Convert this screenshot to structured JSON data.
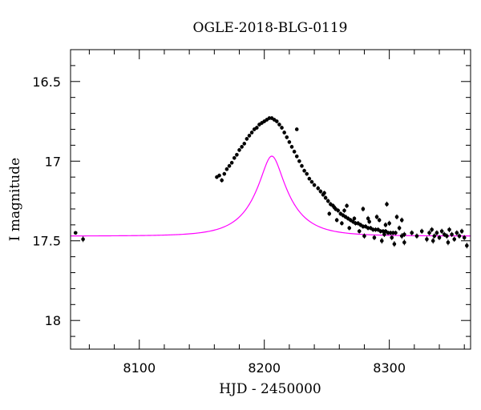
{
  "chart_data": {
    "type": "scatter",
    "title": "OGLE-2018-BLG-0119",
    "xlabel": "HJD - 2450000",
    "ylabel": "I magnitude",
    "xlim": [
      8045,
      8365
    ],
    "ylim": [
      18.18,
      16.3
    ],
    "y_inverted": true,
    "x_ticks": [
      8100,
      8200,
      8300
    ],
    "y_ticks": [
      16.5,
      17,
      17.5,
      18
    ],
    "x_tick_labels": [
      "8100",
      "8200",
      "8300"
    ],
    "y_tick_labels": [
      "16.5",
      "17",
      "17.5",
      "18"
    ],
    "grid": false,
    "colors": {
      "model": "#ff00ff",
      "points": "#000000",
      "frame": "#000000"
    },
    "model": {
      "label": "",
      "params": {
        "t0": 8206,
        "u0": 0.28,
        "tE": 28,
        "base": 17.47,
        "amp_scale": 0.355
      }
    },
    "series": [
      {
        "points": [
          [
            8049,
            17.45,
            0.01
          ],
          [
            8055,
            17.49,
            0.018
          ],
          [
            8162,
            17.1,
            0.012
          ],
          [
            8164,
            17.09,
            0.012
          ],
          [
            8166,
            17.12,
            0.014
          ],
          [
            8168,
            17.08,
            0.012
          ],
          [
            8170,
            17.05,
            0.012
          ],
          [
            8172,
            17.03,
            0.012
          ],
          [
            8174,
            17.01,
            0.012
          ],
          [
            8176,
            16.98,
            0.012
          ],
          [
            8178,
            16.96,
            0.012
          ],
          [
            8180,
            16.93,
            0.012
          ],
          [
            8182,
            16.91,
            0.012
          ],
          [
            8184,
            16.89,
            0.012
          ],
          [
            8186,
            16.86,
            0.012
          ],
          [
            8188,
            16.84,
            0.012
          ],
          [
            8190,
            16.82,
            0.012
          ],
          [
            8192,
            16.8,
            0.012
          ],
          [
            8194,
            16.79,
            0.012
          ],
          [
            8196,
            16.77,
            0.012
          ],
          [
            8198,
            16.76,
            0.012
          ],
          [
            8200,
            16.75,
            0.012
          ],
          [
            8202,
            16.74,
            0.012
          ],
          [
            8204,
            16.73,
            0.012
          ],
          [
            8206,
            16.73,
            0.012
          ],
          [
            8208,
            16.74,
            0.012
          ],
          [
            8210,
            16.75,
            0.012
          ],
          [
            8212,
            16.77,
            0.012
          ],
          [
            8214,
            16.79,
            0.012
          ],
          [
            8216,
            16.82,
            0.012
          ],
          [
            8218,
            16.85,
            0.012
          ],
          [
            8220,
            16.88,
            0.012
          ],
          [
            8222,
            16.91,
            0.012
          ],
          [
            8224,
            16.94,
            0.012
          ],
          [
            8226,
            16.97,
            0.012
          ],
          [
            8228,
            17.0,
            0.012
          ],
          [
            8230,
            17.03,
            0.012
          ],
          [
            8232,
            17.06,
            0.012
          ],
          [
            8234,
            17.08,
            0.012
          ],
          [
            8236,
            17.11,
            0.012
          ],
          [
            8238,
            17.13,
            0.012
          ],
          [
            8240,
            17.15,
            0.012
          ],
          [
            8226,
            16.8,
            0.01
          ],
          [
            8243,
            17.17,
            0.014
          ],
          [
            8245,
            17.19,
            0.014
          ],
          [
            8247,
            17.21,
            0.014
          ],
          [
            8249,
            17.23,
            0.014
          ],
          [
            8251,
            17.25,
            0.014
          ],
          [
            8253,
            17.27,
            0.014
          ],
          [
            8255,
            17.28,
            0.014
          ],
          [
            8257,
            17.3,
            0.014
          ],
          [
            8259,
            17.31,
            0.014
          ],
          [
            8261,
            17.33,
            0.014
          ],
          [
            8263,
            17.34,
            0.014
          ],
          [
            8265,
            17.35,
            0.014
          ],
          [
            8267,
            17.36,
            0.014
          ],
          [
            8269,
            17.37,
            0.014
          ],
          [
            8271,
            17.38,
            0.014
          ],
          [
            8273,
            17.39,
            0.014
          ],
          [
            8275,
            17.39,
            0.014
          ],
          [
            8277,
            17.4,
            0.014
          ],
          [
            8279,
            17.41,
            0.014
          ],
          [
            8281,
            17.41,
            0.014
          ],
          [
            8283,
            17.42,
            0.014
          ],
          [
            8285,
            17.42,
            0.014
          ],
          [
            8287,
            17.43,
            0.014
          ],
          [
            8289,
            17.43,
            0.014
          ],
          [
            8291,
            17.43,
            0.014
          ],
          [
            8293,
            17.44,
            0.014
          ],
          [
            8295,
            17.44,
            0.014
          ],
          [
            8297,
            17.44,
            0.014
          ],
          [
            8299,
            17.45,
            0.014
          ],
          [
            8301,
            17.45,
            0.014
          ],
          [
            8303,
            17.45,
            0.014
          ],
          [
            8305,
            17.45,
            0.014
          ],
          [
            8252,
            17.33,
            0.014
          ],
          [
            8258,
            17.37,
            0.014
          ],
          [
            8262,
            17.39,
            0.014
          ],
          [
            8268,
            17.42,
            0.014
          ],
          [
            8272,
            17.36,
            0.014
          ],
          [
            8276,
            17.44,
            0.014
          ],
          [
            8280,
            17.47,
            0.016
          ],
          [
            8284,
            17.38,
            0.014
          ],
          [
            8288,
            17.48,
            0.016
          ],
          [
            8292,
            17.37,
            0.014
          ],
          [
            8294,
            17.5,
            0.018
          ],
          [
            8296,
            17.46,
            0.016
          ],
          [
            8298,
            17.27,
            0.016
          ],
          [
            8300,
            17.39,
            0.016
          ],
          [
            8302,
            17.48,
            0.016
          ],
          [
            8304,
            17.52,
            0.018
          ],
          [
            8306,
            17.35,
            0.016
          ],
          [
            8308,
            17.42,
            0.016
          ],
          [
            8310,
            17.37,
            0.016
          ],
          [
            8312,
            17.46,
            0.016
          ],
          [
            8248,
            17.2,
            0.014
          ],
          [
            8256,
            17.29,
            0.014
          ],
          [
            8264,
            17.31,
            0.014
          ],
          [
            8266,
            17.28,
            0.014
          ],
          [
            8279,
            17.3,
            0.016
          ],
          [
            8283,
            17.36,
            0.016
          ],
          [
            8290,
            17.35,
            0.016
          ],
          [
            8297,
            17.4,
            0.016
          ],
          [
            8310,
            17.47,
            0.018
          ],
          [
            8312,
            17.51,
            0.018
          ],
          [
            8318,
            17.45,
            0.016
          ],
          [
            8322,
            17.47,
            0.016
          ],
          [
            8326,
            17.44,
            0.016
          ],
          [
            8330,
            17.49,
            0.018
          ],
          [
            8332,
            17.45,
            0.016
          ],
          [
            8334,
            17.43,
            0.016
          ],
          [
            8336,
            17.47,
            0.016
          ],
          [
            8338,
            17.45,
            0.016
          ],
          [
            8340,
            17.48,
            0.016
          ],
          [
            8342,
            17.44,
            0.016
          ],
          [
            8344,
            17.46,
            0.016
          ],
          [
            8346,
            17.47,
            0.016
          ],
          [
            8348,
            17.43,
            0.016
          ],
          [
            8350,
            17.46,
            0.016
          ],
          [
            8352,
            17.49,
            0.016
          ],
          [
            8354,
            17.45,
            0.016
          ],
          [
            8356,
            17.47,
            0.016
          ],
          [
            8358,
            17.44,
            0.016
          ],
          [
            8360,
            17.48,
            0.016
          ],
          [
            8362,
            17.53,
            0.018
          ],
          [
            8335,
            17.5,
            0.018
          ],
          [
            8347,
            17.51,
            0.018
          ]
        ]
      }
    ]
  }
}
